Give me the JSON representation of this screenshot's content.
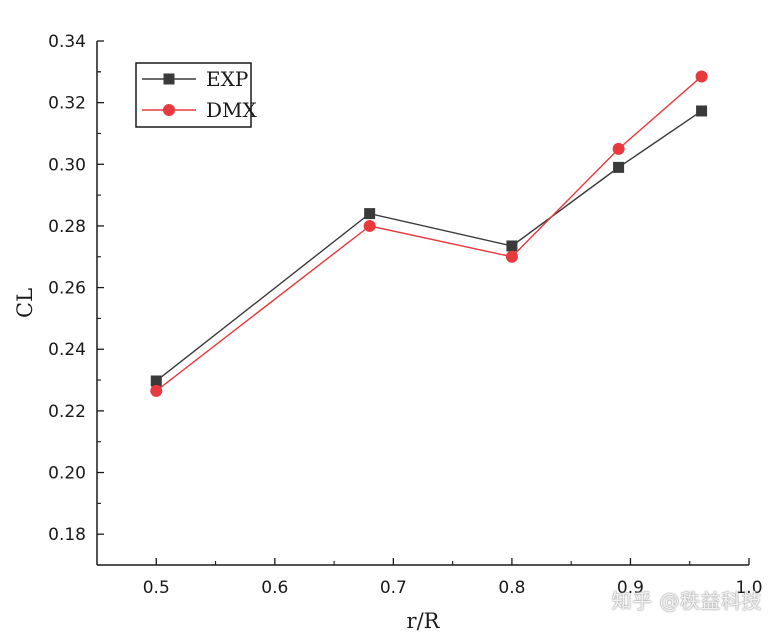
{
  "chart_data": {
    "type": "line",
    "title": "",
    "xlabel": "r/R",
    "ylabel": "CL",
    "xlim": [
      0.45,
      1.0
    ],
    "ylim": [
      0.17,
      0.34
    ],
    "x_ticks": [
      "0.5",
      "0.6",
      "0.7",
      "0.8",
      "0.9",
      "1.0"
    ],
    "y_ticks": [
      "0.18",
      "0.20",
      "0.22",
      "0.24",
      "0.26",
      "0.28",
      "0.30",
      "0.32",
      "0.34"
    ],
    "legend_position": "top-left",
    "series": [
      {
        "name": "EXP",
        "color": "#3a3a3a",
        "marker": "square",
        "x": [
          0.5,
          0.68,
          0.8,
          0.89,
          0.96
        ],
        "values": [
          0.2297,
          0.284,
          0.2735,
          0.299,
          0.3173
        ]
      },
      {
        "name": "DMX",
        "color": "#e8393d",
        "marker": "circle",
        "x": [
          0.5,
          0.68,
          0.8,
          0.89,
          0.96
        ],
        "values": [
          0.2265,
          0.28,
          0.27,
          0.305,
          0.3285
        ]
      }
    ]
  },
  "watermark": "知乎 @秩益科技"
}
